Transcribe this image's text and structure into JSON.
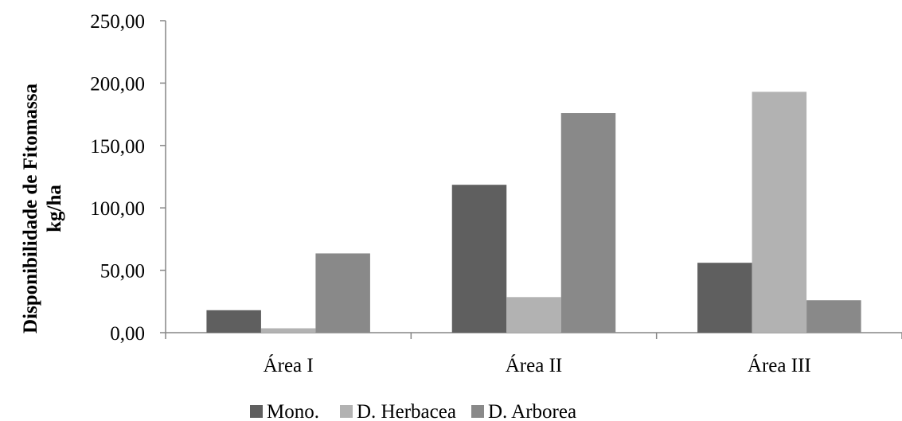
{
  "chart_data": {
    "type": "bar",
    "title": "",
    "xlabel": "",
    "ylabel_lines": [
      "Disponibilidade de Fitomassa",
      "kg/ha"
    ],
    "categories": [
      "Área I",
      "Área II",
      "Área III"
    ],
    "series": [
      {
        "name": "Mono.",
        "color": "#5f5f5f",
        "values": [
          18.0,
          118.5,
          56.0
        ]
      },
      {
        "name": "D. Herbacea",
        "color": "#b2b2b2",
        "values": [
          3.5,
          28.5,
          193.0
        ]
      },
      {
        "name": "D. Arborea",
        "color": "#898989",
        "values": [
          63.5,
          176.0,
          26.0
        ]
      }
    ],
    "ylim": [
      0,
      250
    ],
    "yticks": [
      "0,00",
      "50,00",
      "100,00",
      "150,00",
      "200,00",
      "250,00"
    ],
    "grid": false,
    "legend_position": "bottom"
  }
}
